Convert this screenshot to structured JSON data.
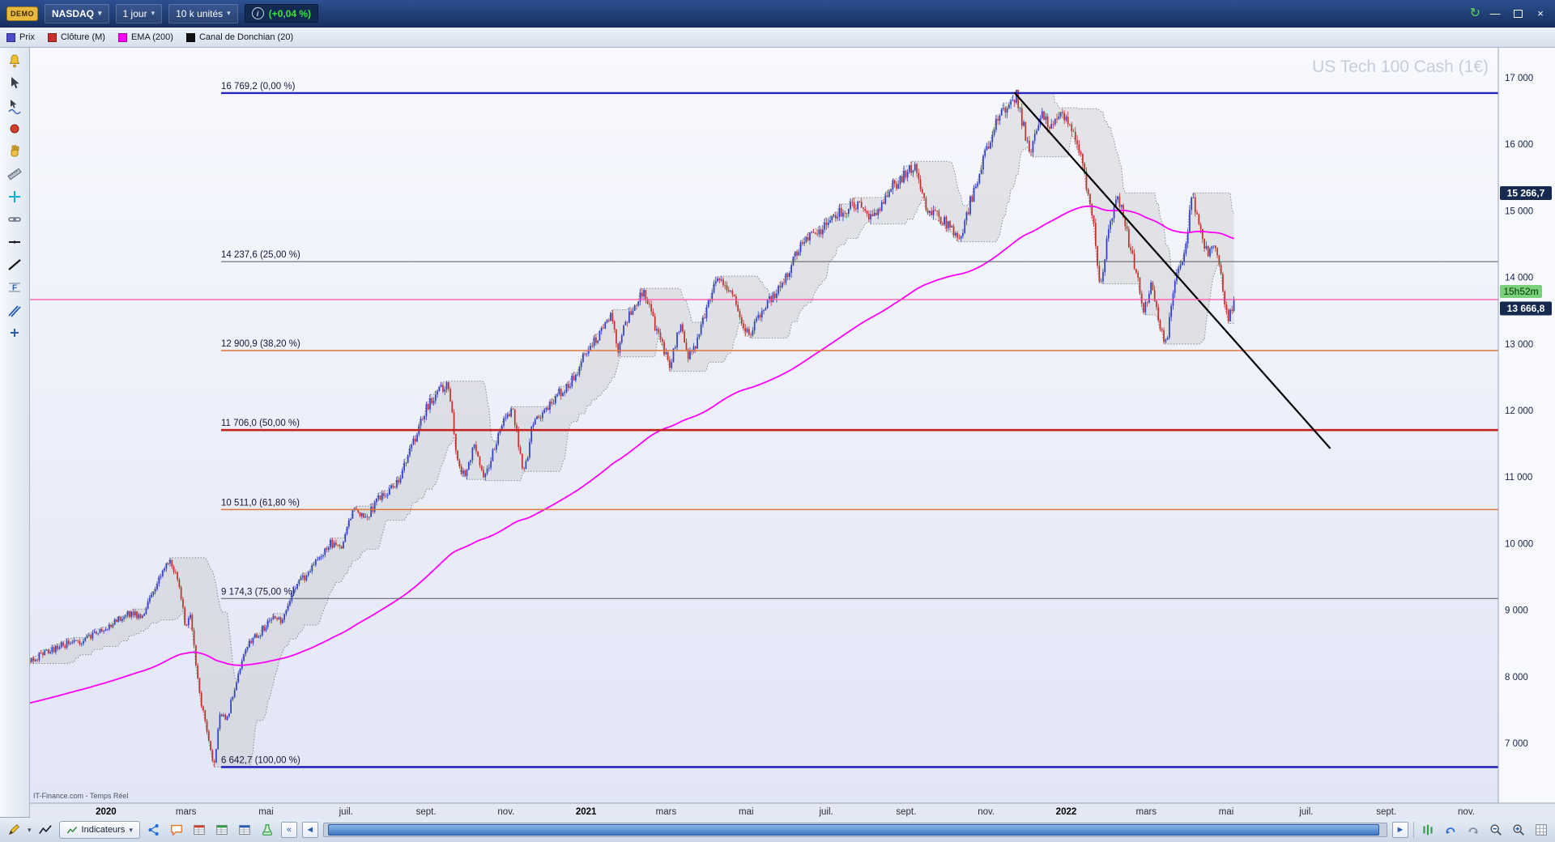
{
  "topbar": {
    "logo": "DEMO",
    "symbol": "NASDAQ",
    "timeframe": "1 jour",
    "units": "10 k unités",
    "change": "(+0,04 %)"
  },
  "glyphs": {
    "caret": "▾",
    "info": "i",
    "sync": "↻",
    "minimize": "—",
    "close": "×",
    "nav_first": "«",
    "nav_prev": "◄",
    "nav_next": "►"
  },
  "legend": {
    "items": [
      {
        "label": "Prix",
        "color": "#4c4cc8"
      },
      {
        "label": "Clôture (M)",
        "color": "#c8312b"
      },
      {
        "label": "EMA (200)",
        "color": "#ff00ff"
      },
      {
        "label": "Canal de Donchian (20)",
        "color": "#111111"
      }
    ],
    "watermark": "US Tech 100 Cash (1€)"
  },
  "left_toolbar": {
    "tools": [
      "alarm",
      "cursor",
      "track-cursor",
      "record",
      "hand",
      "ruler",
      "crosshair",
      "link",
      "horizontal-line-tool",
      "trend-line-tool",
      "fibonacci-tool",
      "channel-tool",
      "add-object"
    ]
  },
  "bottom_toolbar": {
    "indicators_button": "Indicateurs",
    "left_icons": [
      "draw-tool",
      "curve-tool",
      "share",
      "comment",
      "watchlist",
      "portfolio",
      "orders",
      "strategy"
    ],
    "right_icons": [
      "chart-style",
      "undo",
      "redo",
      "zoom-out",
      "zoom-in",
      "page-grid"
    ],
    "scrollbar": {
      "thumb_start_pct": 0.4,
      "thumb_width_pct": 98.8
    }
  },
  "chart_data": {
    "type": "candlestick",
    "instrument": "NASDAQ",
    "timeframe": "1 jour",
    "source_watermark": "IT-Finance.com - Temps Réel",
    "time_range": {
      "min": -1.9,
      "max": 34.8
    },
    "price_range": {
      "min": 6100,
      "max": 17450
    },
    "candles_per_month": 21.7,
    "last_candle_t": 28.2,
    "y_ticks": [
      {
        "v": 17000,
        "label": "17 000"
      },
      {
        "v": 16000,
        "label": "16 000"
      },
      {
        "v": 15000,
        "label": "15 000"
      },
      {
        "v": 14000,
        "label": "14 000"
      },
      {
        "v": 13000,
        "label": "13 000"
      },
      {
        "v": 12000,
        "label": "12 000"
      },
      {
        "v": 11000,
        "label": "11 000"
      },
      {
        "v": 10000,
        "label": "10 000"
      },
      {
        "v": 9000,
        "label": "9 000"
      },
      {
        "v": 8000,
        "label": "8 000"
      },
      {
        "v": 7000,
        "label": "7 000"
      }
    ],
    "x_ticks": [
      {
        "t": 0,
        "label": "2020",
        "bold": true
      },
      {
        "t": 2,
        "label": "mars",
        "bold": false
      },
      {
        "t": 4,
        "label": "mai",
        "bold": false
      },
      {
        "t": 6,
        "label": "juil.",
        "bold": false
      },
      {
        "t": 8,
        "label": "sept.",
        "bold": false
      },
      {
        "t": 10,
        "label": "nov.",
        "bold": false
      },
      {
        "t": 12,
        "label": "2021",
        "bold": true
      },
      {
        "t": 14,
        "label": "mars",
        "bold": false
      },
      {
        "t": 16,
        "label": "mai",
        "bold": false
      },
      {
        "t": 18,
        "label": "juil.",
        "bold": false
      },
      {
        "t": 20,
        "label": "sept.",
        "bold": false
      },
      {
        "t": 22,
        "label": "nov.",
        "bold": false
      },
      {
        "t": 24,
        "label": "2022",
        "bold": true
      },
      {
        "t": 26,
        "label": "mars",
        "bold": false
      },
      {
        "t": 28,
        "label": "mai",
        "bold": false
      },
      {
        "t": 30,
        "label": "juil.",
        "bold": false
      },
      {
        "t": 32,
        "label": "sept.",
        "bold": false
      },
      {
        "t": 34,
        "label": "nov.",
        "bold": false
      }
    ],
    "fibonacci": [
      {
        "price": 16769.2,
        "label": "16 769,2 (0,00 %)",
        "color": "#2626bd",
        "width": 2.4
      },
      {
        "price": 14237.6,
        "label": "14 237,6 (25,00 %)",
        "color": "#555560",
        "width": 1
      },
      {
        "price": 12900.9,
        "label": "12 900,9 (38,20 %)",
        "color": "#e0763a",
        "width": 1.5
      },
      {
        "price": 11706.0,
        "label": "11 706,0 (50,00 %)",
        "color": "#c42420",
        "width": 2.6
      },
      {
        "price": 10511.0,
        "label": "10 511,0 (61,80 %)",
        "color": "#e0763a",
        "width": 1.5
      },
      {
        "price": 9174.3,
        "label": "9 174,3 (75,00 %)",
        "color": "#555560",
        "width": 1
      },
      {
        "price": 6642.7,
        "label": "6 642,7 (100,00 %)",
        "color": "#2626bd",
        "width": 2.6
      }
    ],
    "trendline": {
      "t1": 22.7,
      "p1": 16780,
      "t2": 30.6,
      "p2": 11430,
      "color": "#000000",
      "width": 2.2
    },
    "current_price": {
      "value": 13666.8,
      "label": "13 666,8",
      "line_color": "#ff4da6",
      "badge_bg": "#16294e"
    },
    "monthly_close": {
      "value": 15266.7,
      "label": "15 266,7",
      "badge_bg": "#16294e"
    },
    "session_countdown": {
      "label": "15h52m",
      "badge_bg": "#79d279"
    },
    "ema": {
      "period": 200,
      "seed": 7600,
      "color": "#ff00ff"
    },
    "donchian": {
      "period": 20,
      "fill": "#bfbfbf",
      "stroke": "#8d8d8d"
    },
    "candle_colors": {
      "up": "#2e3fc4",
      "down": "#c03028"
    },
    "price_keypoints": [
      [
        -1.9,
        8250
      ],
      [
        -1.2,
        8450
      ],
      [
        -0.6,
        8550
      ],
      [
        0,
        8720
      ],
      [
        0.5,
        8950
      ],
      [
        0.9,
        8900
      ],
      [
        1.3,
        9450
      ],
      [
        1.6,
        9730
      ],
      [
        1.85,
        9350
      ],
      [
        2,
        8700
      ],
      [
        2.1,
        8950
      ],
      [
        2.35,
        7700
      ],
      [
        2.55,
        7100
      ],
      [
        2.7,
        6650
      ],
      [
        2.85,
        7500
      ],
      [
        3,
        7300
      ],
      [
        3.2,
        7800
      ],
      [
        3.5,
        8450
      ],
      [
        3.9,
        8700
      ],
      [
        4.2,
        8950
      ],
      [
        4.4,
        8850
      ],
      [
        4.7,
        9350
      ],
      [
        5,
        9500
      ],
      [
        5.3,
        9800
      ],
      [
        5.6,
        10000
      ],
      [
        5.9,
        9950
      ],
      [
        6.2,
        10550
      ],
      [
        6.45,
        10350
      ],
      [
        6.8,
        10650
      ],
      [
        7.1,
        10800
      ],
      [
        7.4,
        11050
      ],
      [
        7.7,
        11550
      ],
      [
        8,
        12050
      ],
      [
        8.55,
        12440
      ],
      [
        8.8,
        11200
      ],
      [
        9,
        11000
      ],
      [
        9.2,
        11570
      ],
      [
        9.45,
        10950
      ],
      [
        9.7,
        11450
      ],
      [
        10,
        11900
      ],
      [
        10.15,
        12050
      ],
      [
        10.45,
        11050
      ],
      [
        10.7,
        11900
      ],
      [
        11,
        12000
      ],
      [
        11.3,
        12250
      ],
      [
        11.6,
        12400
      ],
      [
        12,
        12870
      ],
      [
        12.3,
        13100
      ],
      [
        12.6,
        13450
      ],
      [
        12.8,
        12950
      ],
      [
        13.1,
        13500
      ],
      [
        13.45,
        13850
      ],
      [
        13.75,
        13200
      ],
      [
        14.1,
        12650
      ],
      [
        14.35,
        13300
      ],
      [
        14.55,
        12850
      ],
      [
        14.8,
        13050
      ],
      [
        15.1,
        13700
      ],
      [
        15.35,
        14000
      ],
      [
        15.65,
        13750
      ],
      [
        15.9,
        13350
      ],
      [
        16.1,
        13100
      ],
      [
        16.4,
        13550
      ],
      [
        16.7,
        13750
      ],
      [
        17,
        14050
      ],
      [
        17.4,
        14500
      ],
      [
        17.8,
        14700
      ],
      [
        18.2,
        14900
      ],
      [
        18.6,
        15080
      ],
      [
        18.9,
        15050
      ],
      [
        19.2,
        14880
      ],
      [
        19.6,
        15350
      ],
      [
        20.2,
        15660
      ],
      [
        20.5,
        15050
      ],
      [
        20.8,
        14950
      ],
      [
        21.1,
        14750
      ],
      [
        21.35,
        14550
      ],
      [
        21.7,
        15350
      ],
      [
        22,
        15880
      ],
      [
        22.35,
        16450
      ],
      [
        22.6,
        16600
      ],
      [
        22.75,
        16769
      ],
      [
        22.95,
        16200
      ],
      [
        23.1,
        15900
      ],
      [
        23.35,
        16420
      ],
      [
        23.55,
        16300
      ],
      [
        23.85,
        16520
      ],
      [
        24.1,
        16350
      ],
      [
        24.4,
        15700
      ],
      [
        24.65,
        15000
      ],
      [
        24.85,
        13850
      ],
      [
        25.05,
        14700
      ],
      [
        25.3,
        15250
      ],
      [
        25.55,
        14550
      ],
      [
        25.75,
        14050
      ],
      [
        25.95,
        13450
      ],
      [
        26.1,
        13900
      ],
      [
        26.3,
        13350
      ],
      [
        26.5,
        12960
      ],
      [
        26.7,
        13900
      ],
      [
        26.95,
        14400
      ],
      [
        27.15,
        15200
      ],
      [
        27.35,
        14750
      ],
      [
        27.55,
        14320
      ],
      [
        27.7,
        14550
      ],
      [
        27.9,
        13900
      ],
      [
        28.05,
        13350
      ],
      [
        28.2,
        13666.8
      ]
    ]
  }
}
